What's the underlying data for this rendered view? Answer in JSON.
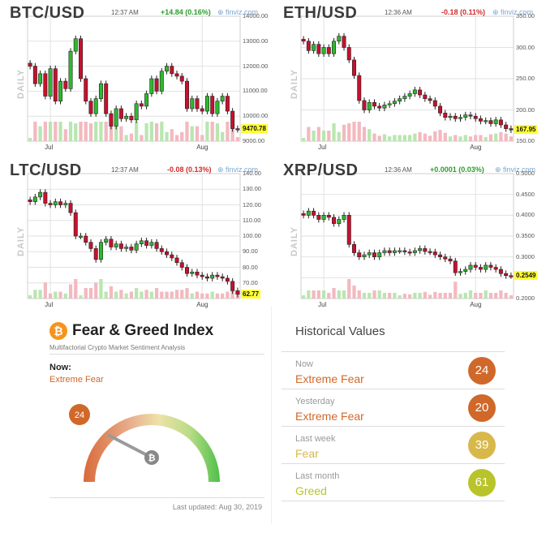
{
  "panels": [
    {
      "symbol": "BTC/USD",
      "time": "12:37 AM",
      "change": "+14.84 (0.16%)",
      "direction": "up",
      "source": "finviz.com",
      "daily": "DAILY",
      "ymin": 9000,
      "ymax": 14000,
      "yticks": [
        "14000.00",
        "13000.00",
        "12000.00",
        "11000.00",
        "10000.00",
        "9000.00"
      ],
      "ytick_values": [
        14000,
        13000,
        12000,
        11000,
        10000,
        9000
      ],
      "last_price": "9470.78",
      "last_value": 9470.78,
      "xticks": [
        "Jul",
        "Aug"
      ],
      "xtick_positions": [
        4,
        34
      ],
      "closes": [
        12000,
        11300,
        11700,
        10800,
        11900,
        10600,
        11400,
        11100,
        12600,
        13100,
        11500,
        10600,
        10100,
        10700,
        11300,
        10100,
        9600,
        10300,
        9900,
        10000,
        9850,
        10500,
        10400,
        10900,
        11500,
        11000,
        11800,
        12000,
        11700,
        11600,
        11400,
        10300,
        10700,
        10300,
        10200,
        10800,
        10100,
        10600,
        10800,
        10200,
        9500,
        9470.78
      ],
      "up_color": "#2eb82e",
      "down_color": "#c8102e"
    },
    {
      "symbol": "ETH/USD",
      "time": "12:36 AM",
      "change": "-0.18 (0.11%)",
      "direction": "down",
      "source": "finviz.com",
      "daily": "DAILY",
      "ymin": 150,
      "ymax": 350,
      "yticks": [
        "350.00",
        "300.00",
        "250.00",
        "200.00",
        "150.00"
      ],
      "ytick_values": [
        350,
        300,
        250,
        200,
        150
      ],
      "last_price": "167.95",
      "last_value": 167.95,
      "xticks": [
        "Jul",
        "Aug"
      ],
      "xtick_positions": [
        4,
        34
      ],
      "closes": [
        310,
        295,
        305,
        290,
        300,
        290,
        310,
        318,
        300,
        280,
        255,
        215,
        200,
        212,
        206,
        203,
        208,
        210,
        214,
        218,
        222,
        226,
        232,
        224,
        218,
        215,
        206,
        195,
        188,
        190,
        186,
        188,
        192,
        190,
        186,
        182,
        183,
        178,
        184,
        176,
        170,
        167.95
      ],
      "up_color": "#2eb82e",
      "down_color": "#c8102e"
    },
    {
      "symbol": "LTC/USD",
      "time": "12:37 AM",
      "change": "-0.08 (0.13%)",
      "direction": "down",
      "source": "finviz.com",
      "daily": "DAILY",
      "ymin": 60,
      "ymax": 140,
      "yticks": [
        "140.00",
        "130.00",
        "120.00",
        "110.00",
        "100.00",
        "90.00",
        "80.00",
        "70.00"
      ],
      "ytick_values": [
        140,
        130,
        120,
        110,
        100,
        90,
        80,
        70
      ],
      "last_price": "62.77",
      "last_value": 62.77,
      "xticks": [
        "Jul",
        "Aug"
      ],
      "xtick_positions": [
        4,
        34
      ],
      "closes": [
        122,
        125,
        128,
        121,
        120,
        122,
        120,
        121,
        115,
        100,
        100,
        96,
        92,
        85,
        96,
        98,
        93,
        95,
        92,
        93,
        91,
        95,
        97,
        94,
        96,
        92,
        90,
        88,
        86,
        83,
        80,
        76,
        77,
        75,
        74,
        73,
        75,
        74,
        73,
        71,
        65,
        62.77
      ],
      "up_color": "#2eb82e",
      "down_color": "#c8102e"
    },
    {
      "symbol": "XRP/USD",
      "time": "12:36 AM",
      "change": "+0.0001 (0.03%)",
      "direction": "up",
      "source": "finviz.com",
      "daily": "DAILY",
      "ymin": 0.2,
      "ymax": 0.5,
      "yticks": [
        "0.5000",
        "0.4500",
        "0.4000",
        "0.3500",
        "0.3000",
        "0.2500",
        "0.2000"
      ],
      "ytick_values": [
        0.5,
        0.45,
        0.4,
        0.35,
        0.3,
        0.25,
        0.2
      ],
      "last_price": "0.2549",
      "last_value": 0.2549,
      "xticks": [
        "Jul",
        "Aug"
      ],
      "xtick_positions": [
        4,
        34
      ],
      "closes": [
        0.4,
        0.41,
        0.4,
        0.39,
        0.4,
        0.395,
        0.38,
        0.39,
        0.4,
        0.33,
        0.31,
        0.3,
        0.305,
        0.31,
        0.3,
        0.31,
        0.315,
        0.31,
        0.315,
        0.315,
        0.312,
        0.31,
        0.315,
        0.32,
        0.313,
        0.312,
        0.305,
        0.3,
        0.295,
        0.29,
        0.262,
        0.265,
        0.27,
        0.28,
        0.275,
        0.27,
        0.28,
        0.275,
        0.27,
        0.26,
        0.255,
        0.2549
      ],
      "up_color": "#2eb82e",
      "down_color": "#c8102e"
    }
  ],
  "fear_greed": {
    "logo": "₿",
    "title": "Fear & Greed Index",
    "subtitle": "Multifactorial Crypto Market Sentiment Analysis",
    "now_label": "Now:",
    "now_value": "Extreme Fear",
    "index": "24",
    "index_value": 24,
    "updated": "Last updated: Aug 30, 2019",
    "accent": "#d0682a"
  },
  "historical": {
    "title": "Historical Values",
    "rows": [
      {
        "label": "Now",
        "value": "Extreme Fear",
        "score": "24",
        "color": "#d0682a"
      },
      {
        "label": "Yesterday",
        "value": "Extreme Fear",
        "score": "20",
        "color": "#d0682a"
      },
      {
        "label": "Last week",
        "value": "Fear",
        "score": "39",
        "color": "#d8b84a"
      },
      {
        "label": "Last month",
        "value": "Greed",
        "score": "61",
        "color": "#b8c42a"
      }
    ]
  }
}
